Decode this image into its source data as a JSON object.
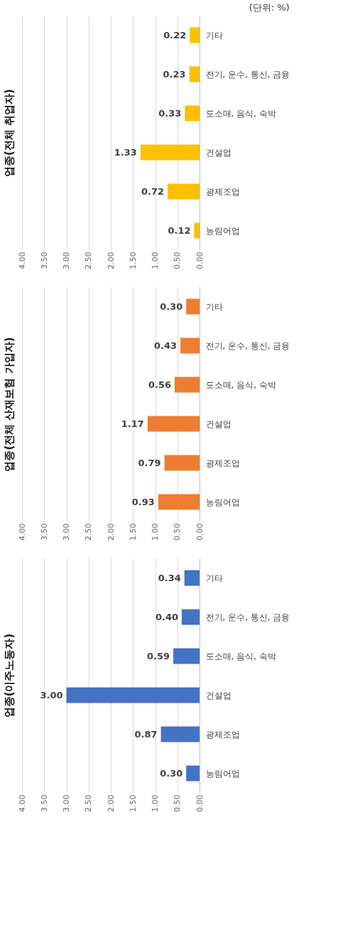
{
  "chart_data": [
    {
      "type": "bar",
      "orientation": "horizontal",
      "title": "업종(전체 취업자)",
      "annotations": [
        "(단위: %)"
      ],
      "categories": [
        "기타",
        "전기, 운수, 통신, 금융",
        "도소매, 음식, 숙박",
        "건설업",
        "광제조업",
        "농림어업"
      ],
      "values": [
        0.22,
        0.23,
        0.33,
        1.33,
        0.72,
        0.12
      ],
      "value_labels": [
        "0.22",
        "0.23",
        "0.33",
        "1.33",
        "0.72",
        "0.12"
      ],
      "color": "#ffc000",
      "xlim": [
        4,
        0
      ],
      "xticks": [
        {
          "value": 4,
          "label": "4.00"
        },
        {
          "value": 3.5,
          "label": "3.50"
        },
        {
          "value": 3,
          "label": "3.00"
        },
        {
          "value": 2.5,
          "label": "2.50"
        },
        {
          "value": 2,
          "label": "2.00"
        },
        {
          "value": 1.5,
          "label": "1.50"
        },
        {
          "value": 1,
          "label": "1.00"
        },
        {
          "value": 0.5,
          "label": "0.50"
        },
        {
          "value": 0,
          "label": "0.00"
        }
      ],
      "grid": "x"
    },
    {
      "type": "bar",
      "orientation": "horizontal",
      "title": "업종(전체 산재보험 가입자)",
      "categories": [
        "기타",
        "전기, 운수, 통신, 금융",
        "도소매, 음식, 숙박",
        "건설업",
        "광제조업",
        "농림어업"
      ],
      "values": [
        0.3,
        0.43,
        0.56,
        1.17,
        0.79,
        0.93
      ],
      "value_labels": [
        "0.30",
        "0.43",
        "0.56",
        "1.17",
        "0.79",
        "0.93"
      ],
      "color": "#ed7d31",
      "xlim": [
        4,
        0
      ],
      "xticks": [
        {
          "value": 4,
          "label": "4.00"
        },
        {
          "value": 3.5,
          "label": "3.50"
        },
        {
          "value": 3,
          "label": "3.00"
        },
        {
          "value": 2.5,
          "label": "2.50"
        },
        {
          "value": 2,
          "label": "2.00"
        },
        {
          "value": 1.5,
          "label": "1.50"
        },
        {
          "value": 1,
          "label": "1.00"
        },
        {
          "value": 0.5,
          "label": "0.50"
        },
        {
          "value": 0,
          "label": "0.00"
        }
      ],
      "grid": "x"
    },
    {
      "type": "bar",
      "orientation": "horizontal",
      "title": "업종(이주노동자)",
      "categories": [
        "기타",
        "전기, 운수, 통신, 금융",
        "도소매, 음식, 숙박",
        "건설업",
        "광제조업",
        "농림어업"
      ],
      "values": [
        0.34,
        0.4,
        0.59,
        3.0,
        0.87,
        0.3
      ],
      "value_labels": [
        "0.34",
        "0.40",
        "0.59",
        "3.00",
        "0.87",
        "0.30"
      ],
      "color": "#4472c4",
      "xlim": [
        4,
        0
      ],
      "xticks": [
        {
          "value": 4,
          "label": "4.00"
        },
        {
          "value": 3.5,
          "label": "3.50"
        },
        {
          "value": 3,
          "label": "3.00"
        },
        {
          "value": 2.5,
          "label": "2.50"
        },
        {
          "value": 2,
          "label": "2.00"
        },
        {
          "value": 1.5,
          "label": "1.50"
        },
        {
          "value": 1,
          "label": "1.00"
        },
        {
          "value": 0.5,
          "label": "0.50"
        },
        {
          "value": 0,
          "label": "0.00"
        }
      ],
      "grid": "x"
    }
  ]
}
